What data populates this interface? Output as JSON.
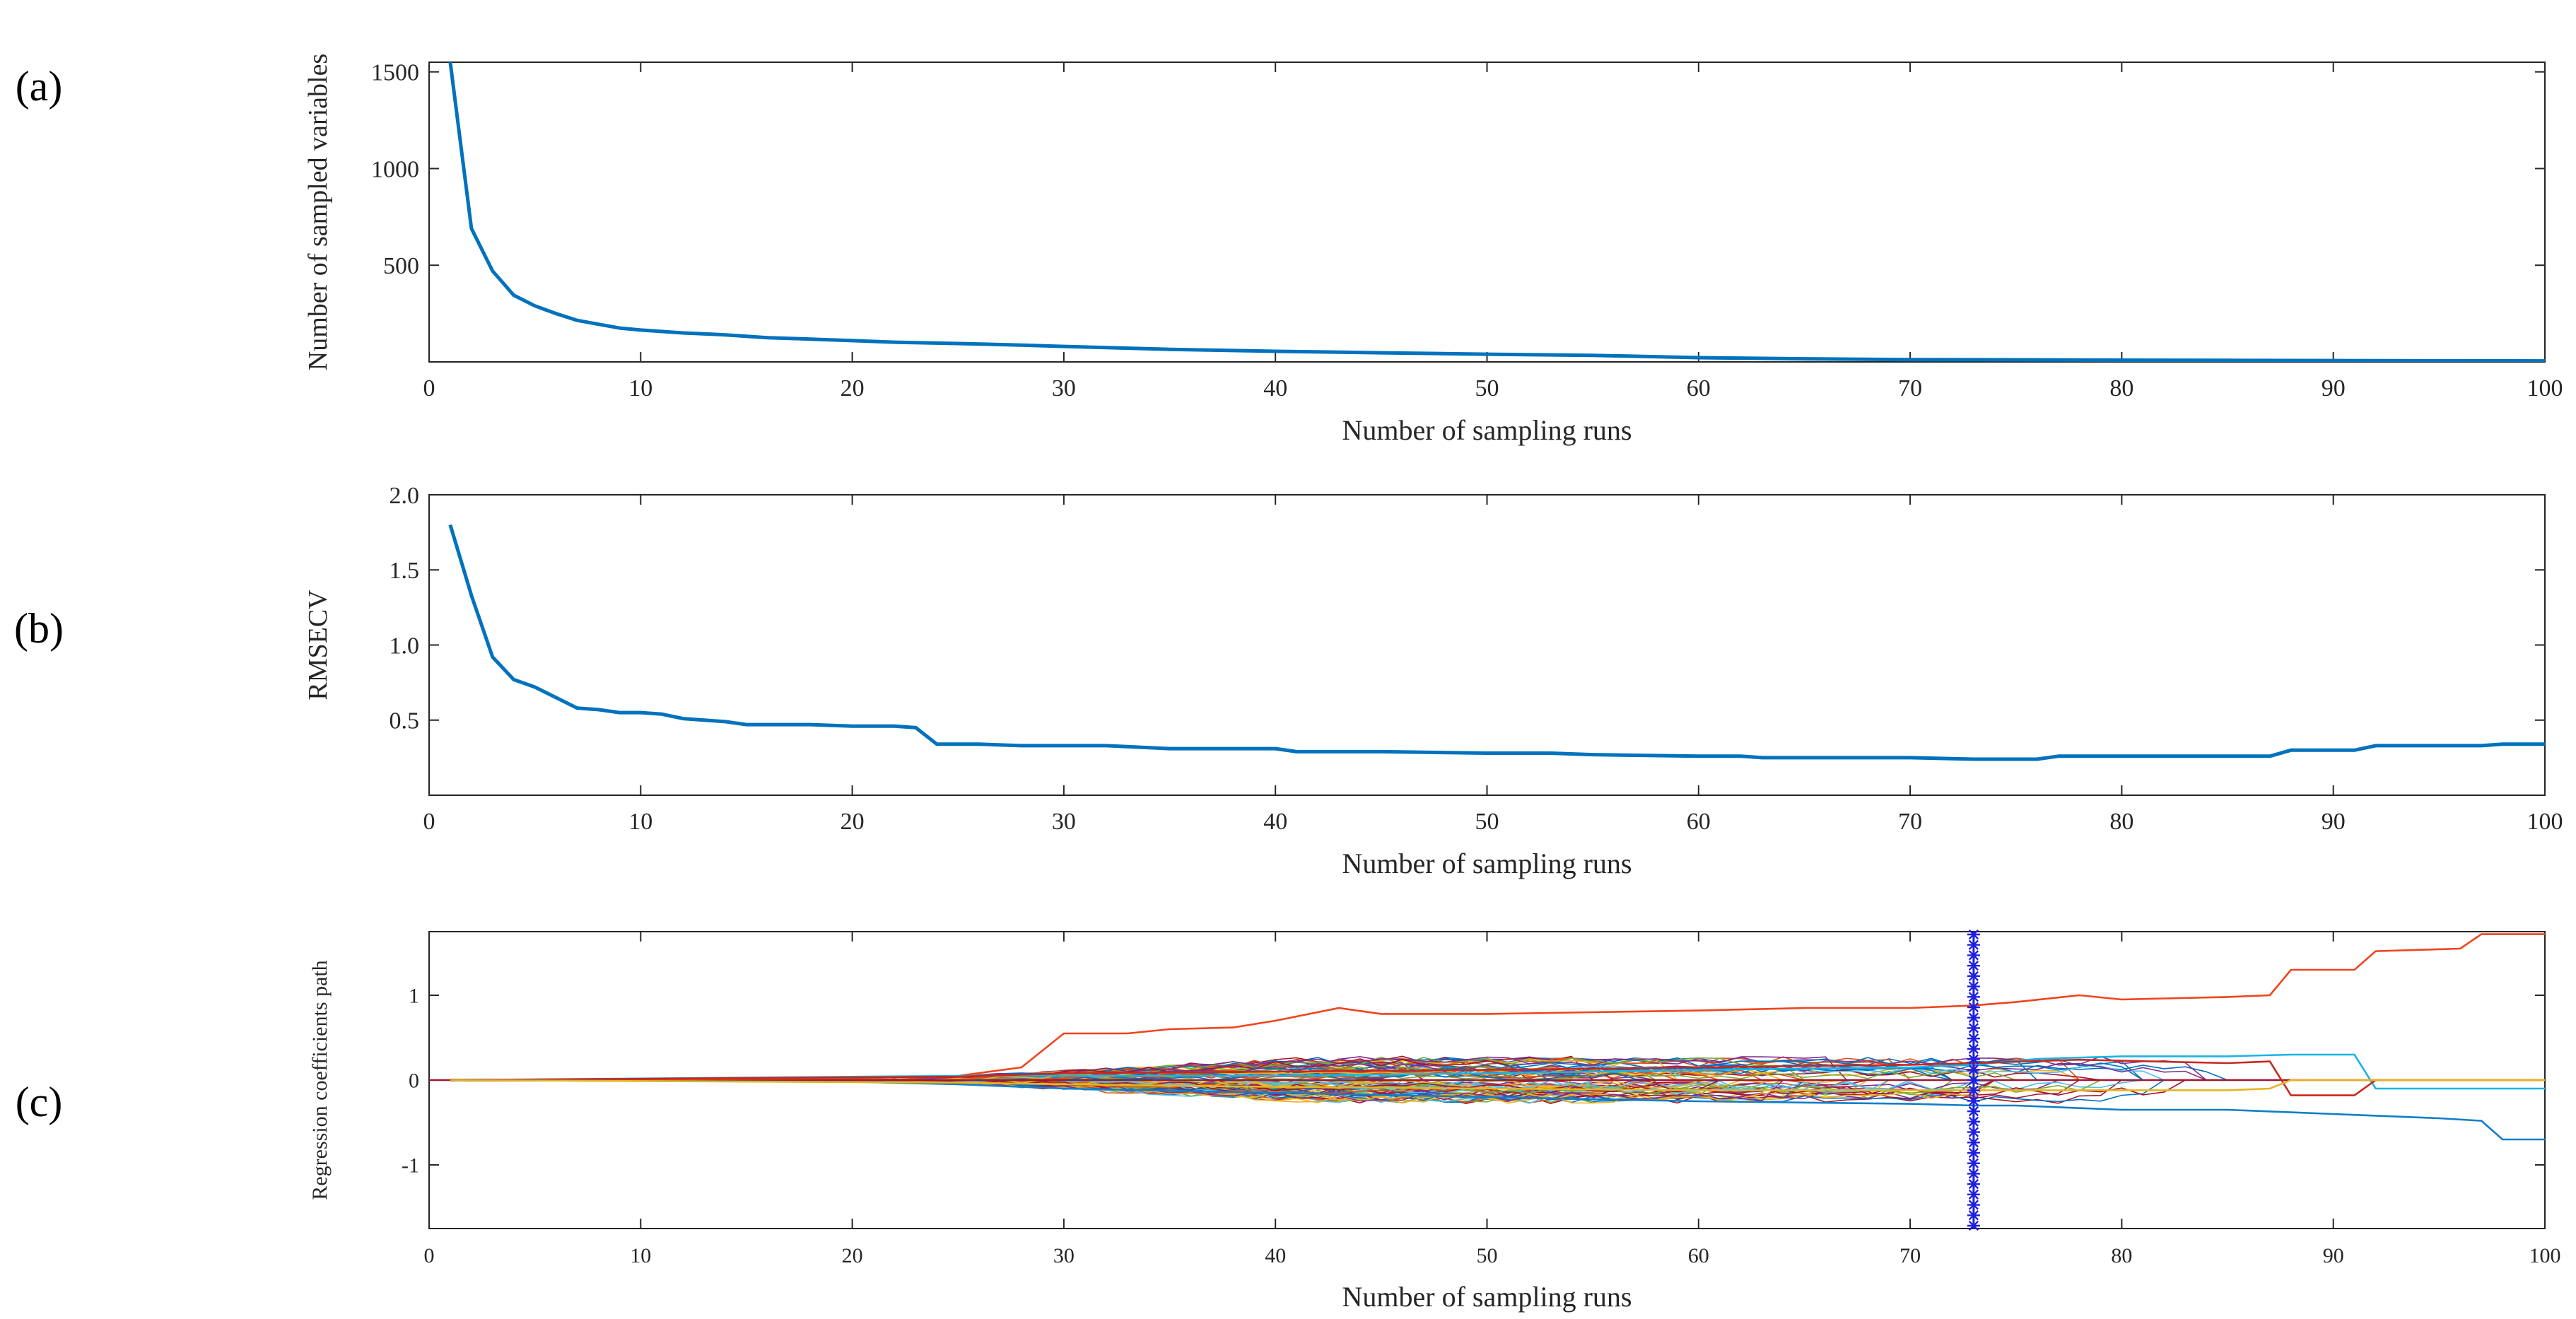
{
  "panel_labels": [
    "(a)",
    "(b)",
    "(c)"
  ],
  "colors": {
    "axis": "#262626",
    "main_line": "#0072BD",
    "zero_line": "#A2142F",
    "marker": "#1F1FE0",
    "coef_palette": [
      "#0072BD",
      "#D95319",
      "#EDB120",
      "#7E2F8E",
      "#77AC30",
      "#4DBEEE",
      "#A2142F"
    ]
  },
  "chart_data": [
    {
      "id": "a",
      "type": "line",
      "title": "",
      "xlabel": "Number of sampling runs",
      "ylabel": "Number of sampled variables",
      "xlim": [
        0,
        100
      ],
      "ylim": [
        0,
        1550
      ],
      "xticks": [
        0,
        10,
        20,
        30,
        40,
        50,
        60,
        70,
        80,
        90,
        100
      ],
      "xtick_labels": [
        "0",
        "10",
        "20",
        "30",
        "40",
        "50",
        "60",
        "70",
        "80",
        "90",
        "100"
      ],
      "yticks": [
        500,
        1000,
        1500
      ],
      "ytick_labels": [
        "500",
        "1000",
        "1500"
      ],
      "series": [
        {
          "name": "sampled variables",
          "x": [
            1,
            2,
            3,
            4,
            5,
            6,
            7,
            8,
            9,
            10,
            12,
            14,
            16,
            18,
            20,
            22,
            25,
            28,
            30,
            35,
            40,
            45,
            50,
            55,
            60,
            65,
            70,
            75,
            80,
            85,
            90,
            95,
            100
          ],
          "y": [
            1550,
            690,
            470,
            345,
            290,
            250,
            215,
            195,
            175,
            165,
            150,
            140,
            125,
            118,
            110,
            102,
            95,
            87,
            80,
            65,
            55,
            47,
            40,
            34,
            22,
            16,
            12,
            11,
            9,
            8,
            7,
            6,
            5
          ]
        }
      ]
    },
    {
      "id": "b",
      "type": "line",
      "title": "",
      "xlabel": "Number of sampling runs",
      "ylabel": "RMSECV",
      "xlim": [
        0,
        100
      ],
      "ylim": [
        0,
        2.0
      ],
      "xticks": [
        0,
        10,
        20,
        30,
        40,
        50,
        60,
        70,
        80,
        90,
        100
      ],
      "xtick_labels": [
        "0",
        "10",
        "20",
        "30",
        "40",
        "50",
        "60",
        "70",
        "80",
        "90",
        "100"
      ],
      "yticks": [
        0.5,
        1.0,
        1.5,
        2.0
      ],
      "ytick_labels": [
        "0.5",
        "1.0",
        "1.5",
        "2.0"
      ],
      "series": [
        {
          "name": "RMSECV",
          "x": [
            1,
            2,
            3,
            4,
            5,
            6,
            7,
            8,
            9,
            10,
            11,
            12,
            13,
            14,
            15,
            18,
            20,
            22,
            23,
            24,
            26,
            28,
            30,
            32,
            35,
            40,
            41,
            45,
            50,
            53,
            55,
            60,
            62,
            63,
            65,
            67,
            70,
            73,
            76,
            77,
            80,
            85,
            87,
            88,
            90,
            91,
            92,
            95,
            97,
            98,
            100
          ],
          "y": [
            1.8,
            1.33,
            0.92,
            0.77,
            0.72,
            0.65,
            0.58,
            0.57,
            0.55,
            0.55,
            0.54,
            0.51,
            0.5,
            0.49,
            0.47,
            0.47,
            0.46,
            0.46,
            0.45,
            0.34,
            0.34,
            0.33,
            0.33,
            0.33,
            0.31,
            0.31,
            0.29,
            0.29,
            0.28,
            0.28,
            0.27,
            0.26,
            0.26,
            0.25,
            0.25,
            0.25,
            0.25,
            0.24,
            0.24,
            0.26,
            0.26,
            0.26,
            0.26,
            0.3,
            0.3,
            0.3,
            0.33,
            0.33,
            0.33,
            0.34,
            0.34
          ]
        }
      ]
    },
    {
      "id": "c",
      "type": "line",
      "title": "",
      "xlabel": "Number of sampling runs",
      "ylabel": "Regression coefficients path",
      "xlim": [
        0,
        100
      ],
      "ylim": [
        -1.75,
        1.75
      ],
      "xticks": [
        0,
        10,
        20,
        30,
        40,
        50,
        60,
        70,
        80,
        90,
        100
      ],
      "xtick_labels": [
        "0",
        "10",
        "20",
        "30",
        "40",
        "50",
        "60",
        "70",
        "80",
        "90",
        "100"
      ],
      "yticks": [
        -1,
        0,
        1
      ],
      "ytick_labels": [
        "-1",
        "0",
        "1"
      ],
      "zero_line": 0,
      "optimal_run": 73,
      "series": [
        {
          "name": "orange-red coefficient",
          "x": [
            1,
            20,
            25,
            28,
            30,
            33,
            35,
            38,
            40,
            43,
            45,
            50,
            55,
            60,
            65,
            70,
            73,
            75,
            78,
            80,
            85,
            87,
            88,
            91,
            92,
            96,
            97,
            100
          ],
          "y": [
            0,
            0.02,
            0.05,
            0.15,
            0.55,
            0.55,
            0.6,
            0.62,
            0.7,
            0.85,
            0.78,
            0.78,
            0.8,
            0.82,
            0.85,
            0.85,
            0.88,
            0.92,
            1.0,
            0.95,
            0.98,
            1.0,
            1.3,
            1.3,
            1.52,
            1.55,
            1.72,
            1.72
          ]
        },
        {
          "name": "light-blue coefficient",
          "x": [
            1,
            25,
            30,
            40,
            50,
            60,
            70,
            73,
            76,
            80,
            85,
            88,
            91,
            92,
            95,
            97,
            100
          ],
          "y": [
            0,
            0.05,
            0.05,
            0.05,
            0.08,
            0.12,
            0.15,
            0.18,
            0.25,
            0.28,
            0.28,
            0.3,
            0.3,
            -0.1,
            -0.1,
            -0.1,
            -0.1
          ]
        },
        {
          "name": "blue coefficient",
          "x": [
            1,
            20,
            25,
            30,
            40,
            50,
            60,
            70,
            73,
            75,
            80,
            85,
            88,
            90,
            95,
            97,
            98,
            100
          ],
          "y": [
            0,
            -0.02,
            -0.05,
            -0.1,
            -0.15,
            -0.2,
            -0.25,
            -0.28,
            -0.3,
            -0.3,
            -0.35,
            -0.35,
            -0.38,
            -0.4,
            -0.45,
            -0.48,
            -0.7,
            -0.7
          ]
        },
        {
          "name": "red coefficient",
          "x": [
            1,
            25,
            30,
            40,
            50,
            60,
            70,
            73,
            78,
            85,
            87,
            88,
            91,
            92,
            100
          ],
          "y": [
            0,
            0.04,
            0.08,
            0.1,
            0.12,
            0.15,
            0.18,
            0.2,
            0.24,
            0.2,
            0.22,
            -0.18,
            -0.18,
            0.0,
            0.0
          ]
        },
        {
          "name": "yellow coefficient",
          "x": [
            1,
            25,
            30,
            40,
            50,
            60,
            70,
            73,
            80,
            85,
            87,
            88,
            90,
            100
          ],
          "y": [
            0,
            -0.03,
            -0.05,
            -0.08,
            -0.1,
            -0.12,
            -0.12,
            -0.12,
            -0.12,
            -0.12,
            -0.1,
            0.0,
            0.0,
            0.0
          ]
        }
      ]
    }
  ]
}
